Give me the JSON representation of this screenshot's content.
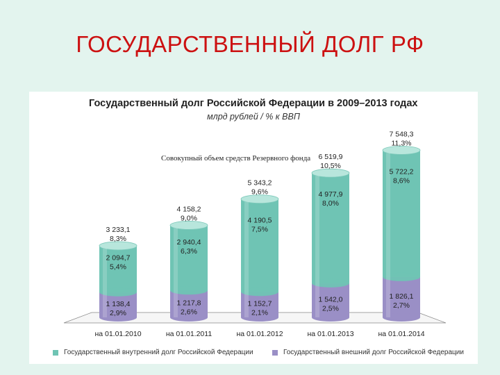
{
  "slide": {
    "title": "ГОСУДАРСТВЕННЫЙ ДОЛГ РФ"
  },
  "chart_data": {
    "type": "bar",
    "stacked": true,
    "title": "Государственный долг Российской Федерации в 2009–2013 годах",
    "subtitle": "млрд рублей / % к ВВП",
    "annotation": "Совокупный объем средств Резервного фонда",
    "categories": [
      "на 01.01.2010",
      "на 01.01.2011",
      "на 01.01.2012",
      "на 01.01.2013",
      "на 01.01.2014"
    ],
    "series": [
      {
        "name": "Государственный внешний долг Российской Федерации",
        "values": [
          1138.4,
          1217.8,
          1152.7,
          1542.0,
          1826.1
        ],
        "labels": [
          "1 138,4",
          "1 217,8",
          "1 152,7",
          "1 542,0",
          "1 826,1"
        ],
        "pct_labels": [
          "2,9%",
          "2,6%",
          "2,1%",
          "2,5%",
          "2,7%"
        ],
        "color": "#9a8fc6"
      },
      {
        "name": "Государственный внутренний долг Российской Федерации",
        "values": [
          2094.7,
          2940.4,
          4190.5,
          4977.9,
          5722.2
        ],
        "labels": [
          "2 094,7",
          "2 940,4",
          "4 190,5",
          "4 977,9",
          "5 722,2"
        ],
        "pct_labels": [
          "5,4%",
          "6,3%",
          "7,5%",
          "8,0%",
          "8,6%"
        ],
        "color": "#6fc4b4"
      }
    ],
    "totals": [
      3233.1,
      4158.2,
      5343.2,
      6519.9,
      7548.3
    ],
    "total_labels": [
      "3 233,1",
      "4 158,2",
      "5 343,2",
      "6 519,9",
      "7 548,3"
    ],
    "total_pct_labels": [
      "8,3%",
      "9,0%",
      "9,6%",
      "10,5%",
      "11,3%"
    ],
    "ylim": [
      0,
      8000
    ],
    "grid": false,
    "legend_position": "bottom",
    "colors": {
      "domestic": "#6fc4b4",
      "external": "#9a8fc6",
      "title_red": "#cc1111"
    }
  }
}
